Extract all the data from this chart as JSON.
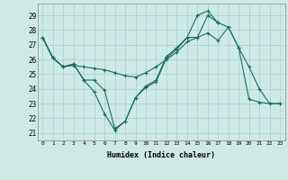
{
  "xlabel": "Humidex (Indice chaleur)",
  "bg_color": "#ceeae7",
  "grid_color": "#aacccc",
  "line_color": "#1a6b5a",
  "xlim": [
    -0.5,
    23.5
  ],
  "ylim": [
    20.5,
    29.8
  ],
  "yticks": [
    21,
    22,
    23,
    24,
    25,
    26,
    27,
    28,
    29
  ],
  "xticks": [
    0,
    1,
    2,
    3,
    4,
    5,
    6,
    7,
    8,
    9,
    10,
    11,
    12,
    13,
    14,
    15,
    16,
    17,
    18,
    19,
    20,
    21,
    22,
    23
  ],
  "line1": [
    27.5,
    26.1,
    25.5,
    25.6,
    25.5,
    25.4,
    25.3,
    25.1,
    24.9,
    24.8,
    25.1,
    25.5,
    26.0,
    26.5,
    27.2,
    27.5,
    27.8,
    27.3,
    28.2,
    26.8,
    23.3,
    23.1,
    23.0,
    23.0
  ],
  "line2": [
    27.5,
    26.1,
    25.5,
    25.7,
    24.6,
    24.6,
    23.9,
    21.3,
    21.8,
    23.4,
    24.1,
    24.5,
    26.1,
    26.7,
    27.5,
    27.5,
    29.0,
    28.5,
    28.2,
    26.8,
    25.5,
    24.0,
    23.0,
    23.0
  ],
  "line3": [
    27.5,
    26.1,
    25.5,
    25.7,
    24.6,
    23.8,
    22.3,
    21.2,
    21.8,
    23.4,
    24.2,
    24.6,
    26.2,
    26.8,
    27.5,
    29.0,
    29.3,
    28.5,
    null,
    null,
    null,
    null,
    null,
    null
  ]
}
